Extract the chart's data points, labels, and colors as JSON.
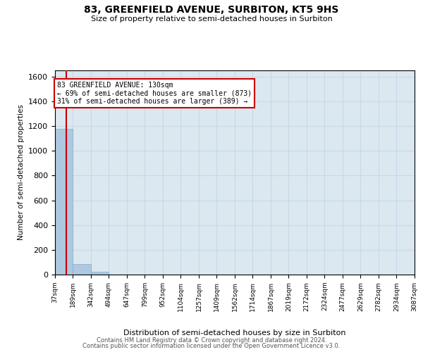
{
  "title": "83, GREENFIELD AVENUE, SURBITON, KT5 9HS",
  "subtitle": "Size of property relative to semi-detached houses in Surbiton",
  "xlabel": "Distribution of semi-detached houses by size in Surbiton",
  "ylabel": "Number of semi-detached properties",
  "property_size": 130,
  "property_label": "83 GREENFIELD AVENUE: 130sqm",
  "pct_smaller": 69,
  "n_smaller": 873,
  "pct_larger": 31,
  "n_larger": 389,
  "bin_edges": [
    37,
    189,
    342,
    494,
    647,
    799,
    952,
    1104,
    1257,
    1409,
    1562,
    1714,
    1867,
    2019,
    2172,
    2324,
    2477,
    2629,
    2782,
    2934,
    3087
  ],
  "bar_heights": [
    1180,
    85,
    20,
    0,
    0,
    0,
    0,
    0,
    0,
    0,
    0,
    0,
    0,
    0,
    0,
    0,
    0,
    0,
    0,
    0
  ],
  "bar_color": "#adc8e0",
  "bar_edge_color": "#7fafc8",
  "grid_color": "#c8d8e8",
  "background_color": "#dce8f0",
  "annotation_box_color": "#cc0000",
  "vline_color": "#cc0000",
  "ylim": [
    0,
    1650
  ],
  "yticks": [
    0,
    200,
    400,
    600,
    800,
    1000,
    1200,
    1400,
    1600
  ],
  "footnote1": "Contains HM Land Registry data © Crown copyright and database right 2024.",
  "footnote2": "Contains public sector information licensed under the Open Government Licence v3.0."
}
